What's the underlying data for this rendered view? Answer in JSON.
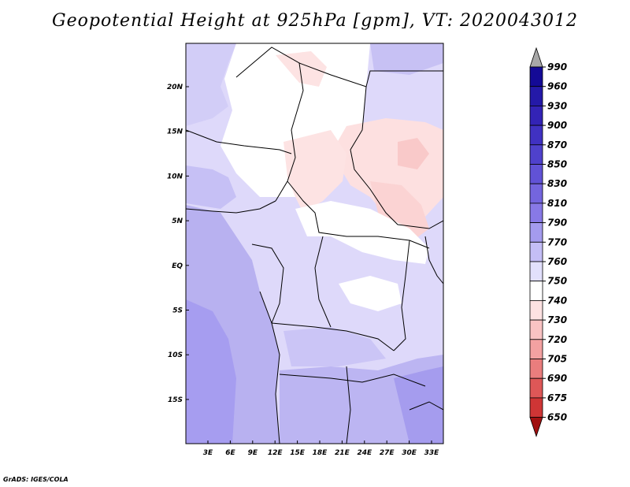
{
  "title": "Geopotential Height at 925hPa [gpm], VT: 2020043012",
  "footer": "GrADS: IGES/COLA",
  "map": {
    "lat_ticks": [
      "20N",
      "15N",
      "10N",
      "5N",
      "EQ",
      "5S",
      "10S",
      "15S"
    ],
    "lon_ticks": [
      "3E",
      "6E",
      "9E",
      "12E",
      "15E",
      "18E",
      "21E",
      "24E",
      "27E",
      "30E",
      "33E"
    ]
  },
  "colorbar": {
    "labels": [
      "990",
      "960",
      "930",
      "900",
      "870",
      "850",
      "830",
      "810",
      "790",
      "770",
      "760",
      "750",
      "740",
      "730",
      "720",
      "705",
      "690",
      "675",
      "650"
    ],
    "colors": [
      "#140a96",
      "#2419a8",
      "#3323b6",
      "#4031c2",
      "#4f41cc",
      "#6152d6",
      "#7465de",
      "#8879e6",
      "#a49bee",
      "#c4bef6",
      "#e2e0fc",
      "#ffffff",
      "#fde2e2",
      "#f9c3c3",
      "#f3a1a1",
      "#ea7d7d",
      "#de5757",
      "#cf3535",
      "#ba1a1a",
      "#a01010"
    ]
  }
}
